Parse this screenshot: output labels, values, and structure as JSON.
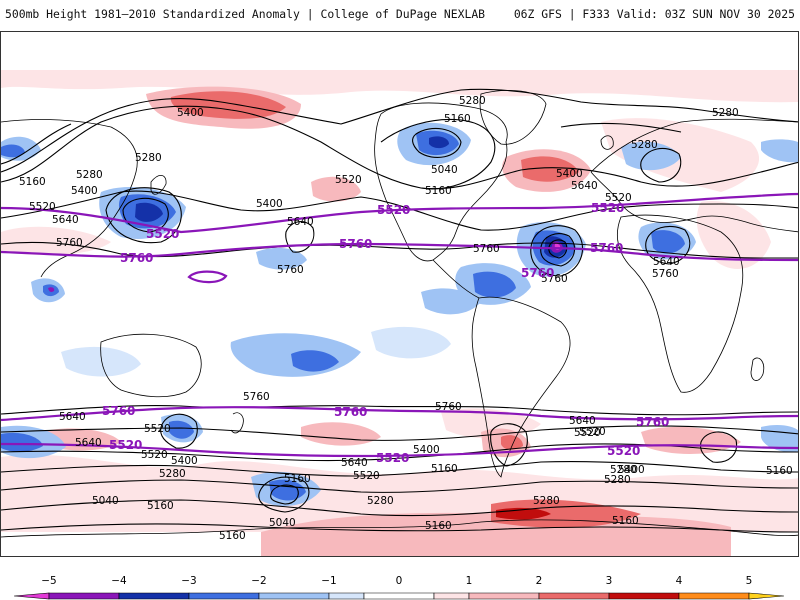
{
  "header": {
    "left": "500mb Height 1981–2010 Standardized Anomaly | College of DuPage NEXLAB",
    "right": "06Z GFS | F333 Valid: 03Z SUN NOV 30 2025"
  },
  "map": {
    "black_contour_labels": [
      "5400",
      "5280",
      "5160",
      "5040",
      "5280",
      "5160",
      "5280",
      "5400",
      "5640",
      "5520",
      "5400",
      "5640",
      "5160",
      "5520",
      "5400",
      "5280",
      "5760",
      "5760",
      "5640",
      "5520",
      "5760",
      "5760",
      "5760",
      "5760",
      "5640",
      "5640",
      "5520",
      "5520",
      "5400",
      "5280",
      "5160",
      "5040",
      "5280",
      "5160",
      "5520",
      "5640",
      "5400",
      "5280",
      "5640",
      "5520",
      "5400",
      "5280",
      "5160",
      "5160",
      "5280",
      "5280",
      "5160",
      "5160",
      "5040",
      "5640",
      "5520",
      "5760",
      "5160"
    ],
    "purple_contour_labels": [
      "5520",
      "5520",
      "5520",
      "5520",
      "5760",
      "5760",
      "5760",
      "5760",
      "5760",
      "5760",
      "5760",
      "5520",
      "5520",
      "5520"
    ],
    "purple_contours": [
      5520,
      5760
    ],
    "colors": {
      "contour": "#000000",
      "highlight_contour": "#8a16b8",
      "coastline": "#000000"
    }
  },
  "colorbar": {
    "ticks": [
      "−5",
      "−4",
      "−3",
      "−2",
      "−1",
      "0",
      "1",
      "2",
      "3",
      "4",
      "5"
    ],
    "tick_values": [
      -5,
      -4,
      -3,
      -2,
      -1,
      0,
      1,
      2,
      3,
      4,
      5
    ],
    "bins": [
      {
        "from": -5.5,
        "to": -5,
        "color": "#e23ad6"
      },
      {
        "from": -5,
        "to": -4,
        "color": "#8a16b8"
      },
      {
        "from": -4,
        "to": -3,
        "color": "#1431a8"
      },
      {
        "from": -3,
        "to": -2,
        "color": "#3e6fe0"
      },
      {
        "from": -2,
        "to": -1,
        "color": "#9fc3f4"
      },
      {
        "from": -1,
        "to": -0.5,
        "color": "#d6e6fb"
      },
      {
        "from": -0.5,
        "to": 0.5,
        "color": "#ffffff"
      },
      {
        "from": 0.5,
        "to": 1,
        "color": "#fde4e6"
      },
      {
        "from": 1,
        "to": 2,
        "color": "#f7b9bd"
      },
      {
        "from": 2,
        "to": 3,
        "color": "#ea6b6b"
      },
      {
        "from": 3,
        "to": 4,
        "color": "#c10d0d"
      },
      {
        "from": 4,
        "to": 5,
        "color": "#ff8c1a"
      },
      {
        "from": 5,
        "to": 5.5,
        "color": "#ffd21e"
      }
    ]
  }
}
